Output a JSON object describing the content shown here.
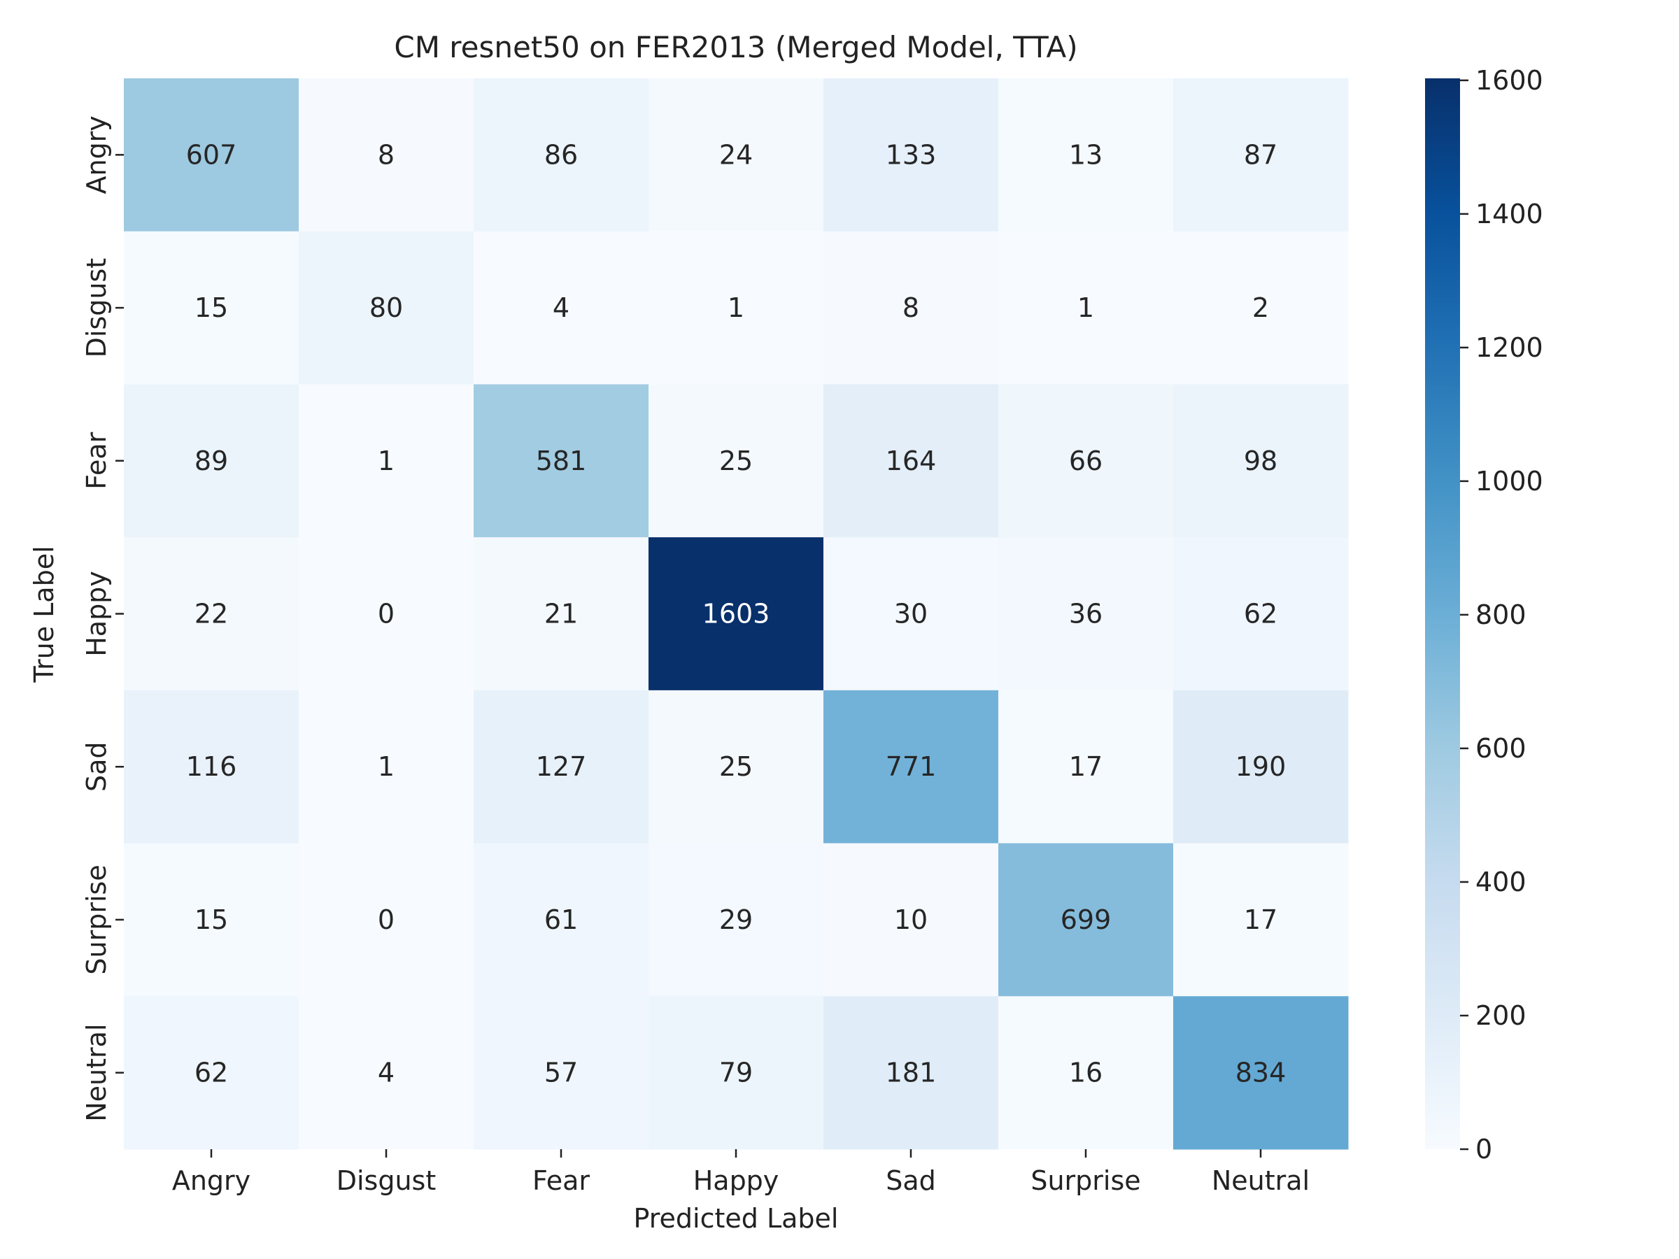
{
  "chart_data": {
    "type": "heatmap",
    "title": "CM resnet50 on FER2013 (Merged Model, TTA)",
    "xlabel": "Predicted Label",
    "ylabel": "True Label",
    "x_categories": [
      "Angry",
      "Disgust",
      "Fear",
      "Happy",
      "Sad",
      "Surprise",
      "Neutral"
    ],
    "y_categories": [
      "Angry",
      "Disgust",
      "Fear",
      "Happy",
      "Sad",
      "Surprise",
      "Neutral"
    ],
    "values": [
      [
        607,
        8,
        86,
        24,
        133,
        13,
        87
      ],
      [
        15,
        80,
        4,
        1,
        8,
        1,
        2
      ],
      [
        89,
        1,
        581,
        25,
        164,
        66,
        98
      ],
      [
        22,
        0,
        21,
        1603,
        30,
        36,
        62
      ],
      [
        116,
        1,
        127,
        25,
        771,
        17,
        190
      ],
      [
        15,
        0,
        61,
        29,
        10,
        699,
        17
      ],
      [
        62,
        4,
        57,
        79,
        181,
        16,
        834
      ]
    ],
    "colorbar": {
      "range": [
        0,
        1603
      ],
      "ticks": [
        0,
        200,
        400,
        600,
        800,
        1000,
        1200,
        1400,
        1600
      ],
      "colormap": "Blues",
      "colors": [
        "#f7fbff",
        "#deebf7",
        "#c6dbef",
        "#9ecae1",
        "#6baed6",
        "#4292c6",
        "#2171b5",
        "#08519c",
        "#08306b"
      ]
    }
  }
}
